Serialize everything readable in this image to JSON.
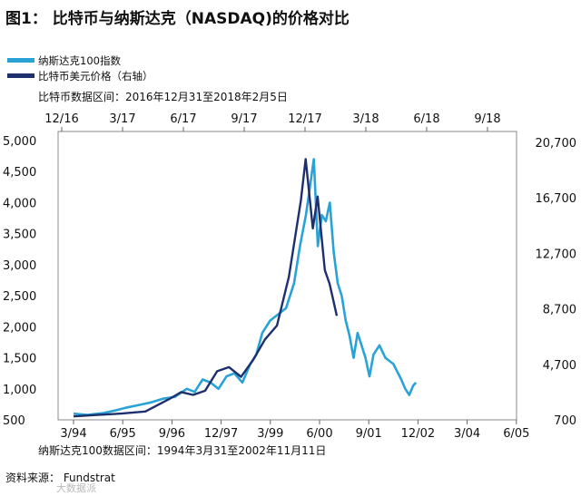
{
  "chart_data": {
    "type": "line",
    "title": "图1：  比特币与纳斯达克（NASDAQ)的价格对比",
    "legend": [
      "纳斯达克100指数",
      "比特币美元价格（右轴）"
    ],
    "top_axis_note": "比特币数据区间：2016年12月31至2018年2月5日",
    "bottom_axis_note": "纳斯达克100数据区间：1994年3月31至2002年11月11日",
    "source": "资料来源：  Fundstrat",
    "watermark": "大数据派",
    "top_x_ticks": [
      "12/16",
      "3/17",
      "6/17",
      "9/17",
      "12/17",
      "3/18",
      "6/18",
      "9/18"
    ],
    "bottom_x_ticks": [
      "3/94",
      "6/95",
      "9/96",
      "12/97",
      "3/99",
      "6/00",
      "9/01",
      "12/02",
      "3/04",
      "6/05"
    ],
    "left_y_ticks": [
      "5,000",
      "4,500",
      "4,000",
      "3,500",
      "3,000",
      "2,500",
      "2,000",
      "1,500",
      "1,000",
      "500"
    ],
    "right_y_ticks": [
      "20,700",
      "16,700",
      "12,700",
      "8,700",
      "4,700",
      "700"
    ],
    "ylim_left": [
      500,
      5000
    ],
    "ylim_right": [
      700,
      20700
    ],
    "colors": {
      "nasdaq": "#29a3d6",
      "bitcoin": "#1e2f6e"
    },
    "series": [
      {
        "name": "纳斯达克100指数",
        "axis": "left",
        "x_range": [
          "1994-03-31",
          "2002-11-11"
        ],
        "x": [
          1994.25,
          1994.6,
          1995.0,
          1995.3,
          1995.6,
          1995.9,
          1996.2,
          1996.5,
          1996.8,
          1997.1,
          1997.3,
          1997.5,
          1997.7,
          1997.9,
          1998.1,
          1998.3,
          1998.5,
          1998.7,
          1998.85,
          1999.0,
          1999.2,
          1999.4,
          1999.6,
          1999.8,
          1999.95,
          2000.1,
          2000.2,
          2000.3,
          2000.4,
          2000.5,
          2000.6,
          2000.7,
          2000.8,
          2000.9,
          2001.0,
          2001.1,
          2001.2,
          2001.3,
          2001.4,
          2001.5,
          2001.6,
          2001.7,
          2001.8,
          2001.95,
          2002.1,
          2002.3,
          2002.5,
          2002.6,
          2002.7,
          2002.8,
          2002.87
        ],
        "values": [
          600,
          580,
          610,
          650,
          700,
          740,
          780,
          840,
          870,
          1000,
          950,
          1150,
          1100,
          1000,
          1200,
          1250,
          1100,
          1400,
          1550,
          1900,
          2100,
          2200,
          2300,
          2700,
          3300,
          3800,
          4250,
          4700,
          3300,
          3800,
          3700,
          4000,
          3200,
          2700,
          2500,
          2100,
          1850,
          1500,
          1900,
          1700,
          1500,
          1200,
          1550,
          1700,
          1500,
          1400,
          1150,
          1000,
          900,
          1050,
          1100
        ]
      },
      {
        "name": "比特币美元价格（右轴）",
        "axis": "right",
        "x_range": [
          "2016-12-31",
          "2018-02-05"
        ],
        "x": [
          2017.0,
          2017.1,
          2017.2,
          2017.3,
          2017.4,
          2017.45,
          2017.5,
          2017.55,
          2017.6,
          2017.65,
          2017.7,
          2017.75,
          2017.8,
          2017.85,
          2017.9,
          2017.95,
          2017.97,
          2018.0,
          2018.02,
          2018.05,
          2018.07,
          2018.1
        ],
        "values": [
          950,
          1050,
          1150,
          1300,
          2200,
          2700,
          2500,
          2800,
          4200,
          4500,
          3800,
          5000,
          6500,
          7500,
          11000,
          16500,
          19500,
          14500,
          16800,
          11500,
          10500,
          8200
        ]
      }
    ]
  }
}
